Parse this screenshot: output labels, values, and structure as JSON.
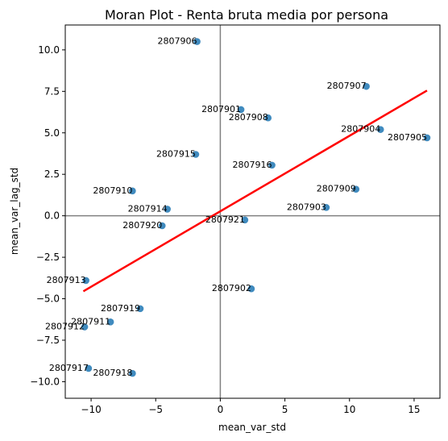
{
  "chart_data": {
    "type": "scatter",
    "title": "Moran Plot - Renta bruta media por persona",
    "xlabel": "mean_var_std",
    "ylabel": "mean_var_lag_std",
    "xlim": [
      -12,
      17
    ],
    "ylim": [
      -11,
      11.5
    ],
    "xticks": [
      -10,
      -5,
      0,
      5,
      10,
      15
    ],
    "yticks": [
      -10.0,
      -7.5,
      -5.0,
      -2.5,
      0.0,
      2.5,
      5.0,
      7.5,
      10.0
    ],
    "xtick_labels": [
      "−10",
      "−5",
      "0",
      "5",
      "10",
      "15"
    ],
    "ytick_labels": [
      "−10.0",
      "−7.5",
      "−5.0",
      "−2.5",
      "0.0",
      "2.5",
      "5.0",
      "7.5",
      "10.0"
    ],
    "grid": false,
    "reference_lines": {
      "x": 0,
      "y": 0,
      "color": "#808080"
    },
    "point_color": "#1f77b4",
    "regression_line": {
      "x": [
        -10.6,
        16.0
      ],
      "y": [
        -4.55,
        7.55
      ],
      "color": "#ff0000"
    },
    "points": [
      {
        "label": "2807906",
        "x": -1.8,
        "y": 10.5
      },
      {
        "label": "2807907",
        "x": 11.3,
        "y": 7.8
      },
      {
        "label": "2807901",
        "x": 1.6,
        "y": 6.4
      },
      {
        "label": "2807908",
        "x": 3.7,
        "y": 5.9
      },
      {
        "label": "2807904",
        "x": 12.4,
        "y": 5.2
      },
      {
        "label": "2807905",
        "x": 16.0,
        "y": 4.7
      },
      {
        "label": "2807915",
        "x": -1.9,
        "y": 3.7
      },
      {
        "label": "2807916",
        "x": 4.0,
        "y": 3.05
      },
      {
        "label": "2807910",
        "x": -6.8,
        "y": 1.5
      },
      {
        "label": "2807909",
        "x": 10.5,
        "y": 1.6
      },
      {
        "label": "2807914",
        "x": -4.1,
        "y": 0.4
      },
      {
        "label": "2807903",
        "x": 8.2,
        "y": 0.5
      },
      {
        "label": "2807921",
        "x": 1.9,
        "y": -0.25
      },
      {
        "label": "2807920",
        "x": -4.5,
        "y": -0.6
      },
      {
        "label": "2807913",
        "x": -10.4,
        "y": -3.9
      },
      {
        "label": "2807902",
        "x": 2.4,
        "y": -4.4
      },
      {
        "label": "2807919",
        "x": -6.2,
        "y": -5.6
      },
      {
        "label": "2807911",
        "x": -8.5,
        "y": -6.4
      },
      {
        "label": "2807912",
        "x": -10.5,
        "y": -6.7
      },
      {
        "label": "2807917",
        "x": -10.2,
        "y": -9.2
      },
      {
        "label": "2807918",
        "x": -6.8,
        "y": -9.5
      }
    ]
  }
}
